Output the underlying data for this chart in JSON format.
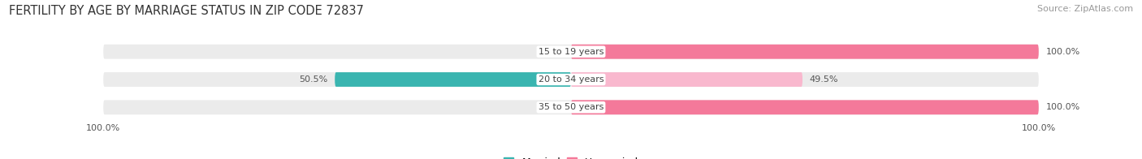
{
  "title": "FERTILITY BY AGE BY MARRIAGE STATUS IN ZIP CODE 72837",
  "source": "Source: ZipAtlas.com",
  "categories": [
    "15 to 19 years",
    "20 to 34 years",
    "35 to 50 years"
  ],
  "married_pct": [
    0.0,
    50.5,
    0.0
  ],
  "unmarried_pct": [
    100.0,
    49.5,
    100.0
  ],
  "married_color": "#3ab5b0",
  "unmarried_color": "#f4799a",
  "unmarried_light_color": "#f9b8ce",
  "bar_bg_color": "#ebebeb",
  "bg_color": "#ffffff",
  "title_fontsize": 10.5,
  "source_fontsize": 8,
  "label_fontsize": 8,
  "category_fontsize": 8,
  "legend_fontsize": 9,
  "left_axis_label": "100.0%",
  "right_axis_label": "100.0%"
}
